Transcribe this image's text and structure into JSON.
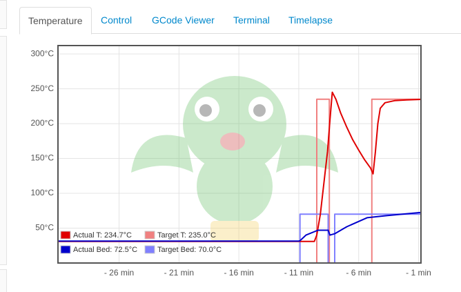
{
  "tabs": [
    "Temperature",
    "Control",
    "GCode Viewer",
    "Terminal",
    "Timelapse"
  ],
  "active_tab": 0,
  "chart_data": {
    "type": "line",
    "xlim": [
      -31.1,
      -0.8
    ],
    "ylim": [
      0,
      312
    ],
    "xticks": [
      {
        "value": -26,
        "label": "- 26 min"
      },
      {
        "value": -21,
        "label": "- 21 min"
      },
      {
        "value": -16,
        "label": "- 16 min"
      },
      {
        "value": -11,
        "label": "- 11 min"
      },
      {
        "value": -6,
        "label": "- 6 min"
      },
      {
        "value": -1,
        "label": "- 1 min"
      }
    ],
    "yticks": [
      {
        "value": 50,
        "label": "50°C"
      },
      {
        "value": 100,
        "label": "100°C"
      },
      {
        "value": 150,
        "label": "150°C"
      },
      {
        "value": 200,
        "label": "200°C"
      },
      {
        "value": 250,
        "label": "250°C"
      },
      {
        "value": 300,
        "label": "300°C"
      }
    ],
    "grid": true,
    "legend": "lower left",
    "series": [
      {
        "name": "Actual T: 234.7°C",
        "color": "#e00000",
        "x": [
          -31.1,
          -20,
          -10,
          -9.7,
          -9.5,
          -9.2,
          -8.8,
          -8.6,
          -8.4,
          -8.2,
          -7.9,
          -7.5,
          -7.0,
          -6.5,
          -6.0,
          -5.5,
          -5.0,
          -4.8,
          -4.6,
          -4.4,
          -4.2,
          -3.8,
          -3,
          -2,
          -0.8
        ],
        "values": [
          31,
          31,
          31,
          31,
          40,
          70,
          130,
          160,
          205,
          245,
          235,
          215,
          195,
          177,
          162,
          148,
          136,
          128,
          160,
          200,
          222,
          230,
          233,
          234,
          234.7
        ]
      },
      {
        "name": "Target T: 235.0°C",
        "color": "#f08080",
        "x": [
          -31.1,
          -9.5,
          -9.5,
          -8.45,
          -8.45,
          -4.9,
          -4.9,
          -0.8
        ],
        "values": [
          0,
          0,
          235,
          235,
          0,
          0,
          235,
          235
        ]
      },
      {
        "name": "Actual Bed: 72.5°C",
        "color": "#0000cc",
        "x": [
          -31.1,
          -20,
          -11,
          -10.9,
          -10.4,
          -9.4,
          -8.55,
          -8.4,
          -8.0,
          -7.0,
          -5.3,
          -3.6,
          -0.8
        ],
        "values": [
          31.5,
          31.5,
          31.5,
          32,
          40,
          47,
          47,
          40,
          42,
          52,
          65,
          68,
          72.5
        ]
      },
      {
        "name": "Target Bed: 70.0°C",
        "color": "#8080ff",
        "x": [
          -31.1,
          -10.9,
          -10.9,
          -8.55,
          -8.55,
          -8.0,
          -8.0,
          -0.8
        ],
        "values": [
          0,
          0,
          70,
          70,
          0,
          0,
          70,
          70
        ]
      }
    ]
  }
}
